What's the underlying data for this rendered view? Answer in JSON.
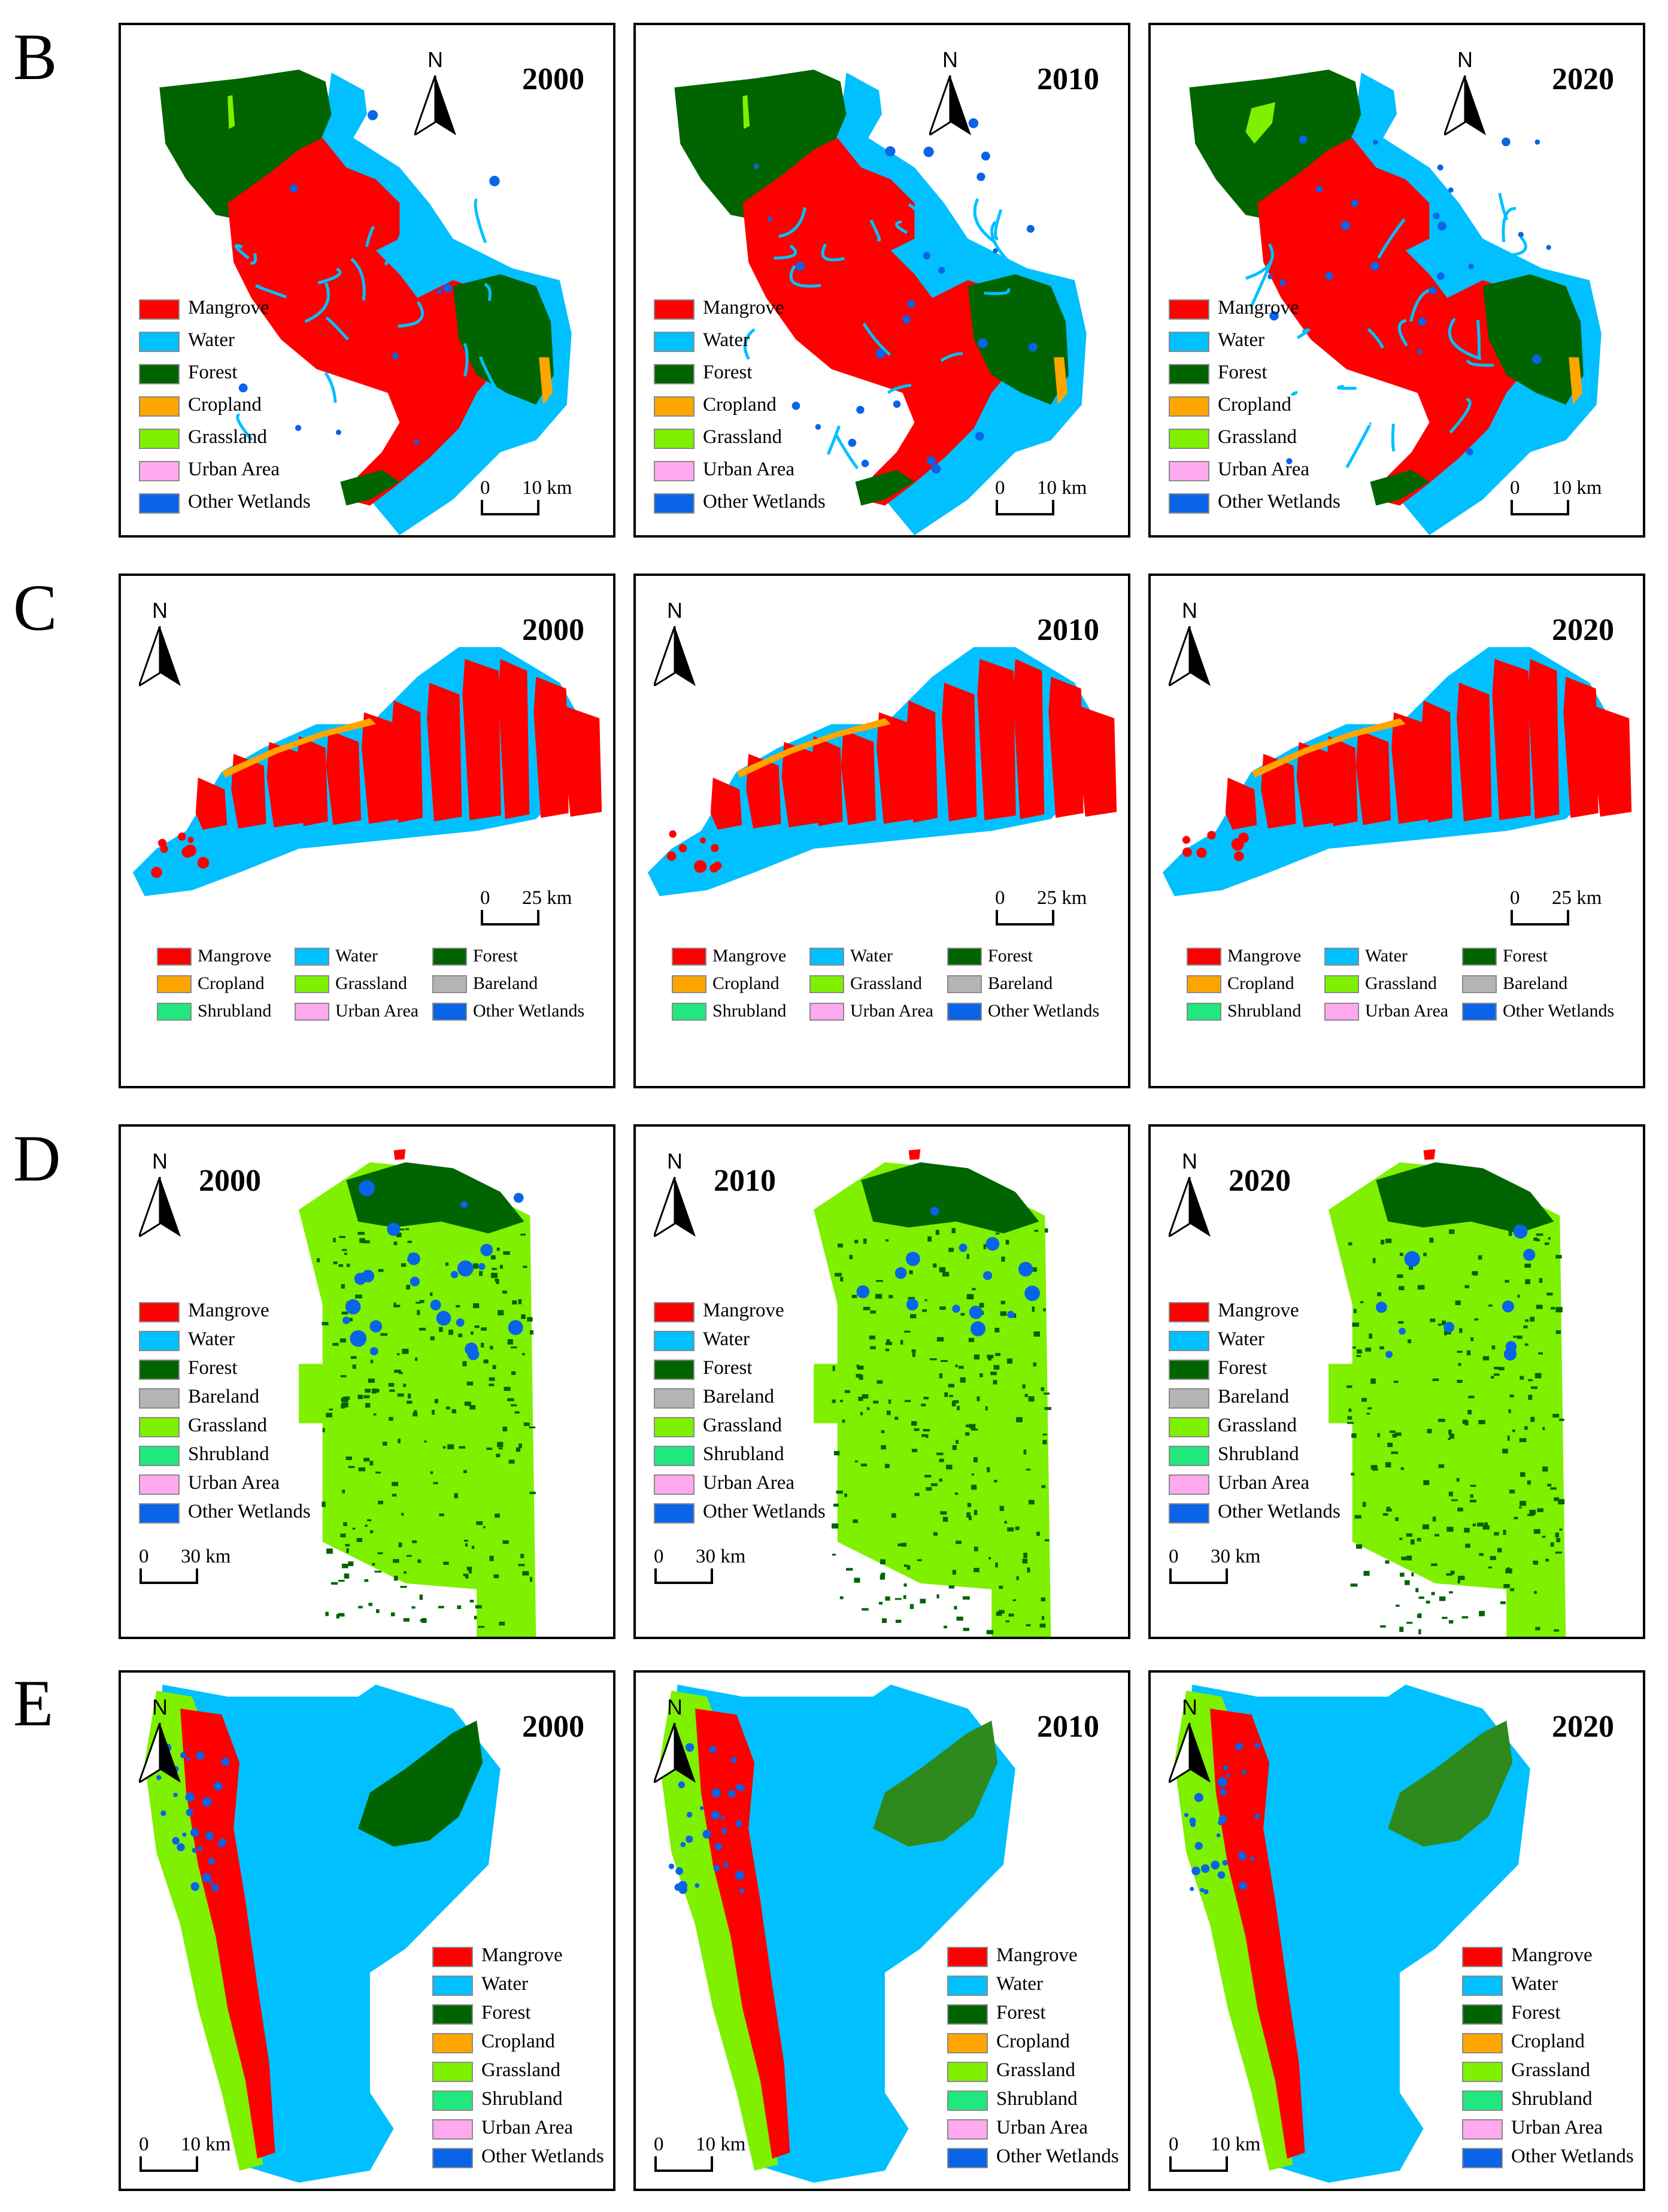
{
  "colors": {
    "mangrove": "#ff0000",
    "water": "#00c0ff",
    "forest": "#006400",
    "cropland": "#ffa500",
    "grassland": "#7ff000",
    "urban_area": "#ffaaee",
    "other_wetlands": "#0a64e8",
    "bareland": "#b4b4b4",
    "shrubland": "#20e87e"
  },
  "north_label": "N",
  "rows": [
    {
      "letter": "B",
      "years": [
        "2000",
        "2010",
        "2020"
      ],
      "scale": {
        "zero": "0",
        "end": "10 km"
      },
      "legend": [
        {
          "label": "Mangrove",
          "color": "#ff0000"
        },
        {
          "label": "Water",
          "color": "#00c0ff"
        },
        {
          "label": "Forest",
          "color": "#006400"
        },
        {
          "label": "Cropland",
          "color": "#ffa500"
        },
        {
          "label": "Grassland",
          "color": "#7ff000"
        },
        {
          "label": "Urban Area",
          "color": "#ffaaee"
        },
        {
          "label": "Other Wetlands",
          "color": "#0a64e8"
        }
      ]
    },
    {
      "letter": "C",
      "years": [
        "2000",
        "2010",
        "2020"
      ],
      "scale": {
        "zero": "0",
        "end": "25 km"
      },
      "legend": [
        {
          "label": "Mangrove",
          "color": "#ff0000"
        },
        {
          "label": "Water",
          "color": "#00c0ff"
        },
        {
          "label": "Forest",
          "color": "#006400"
        },
        {
          "label": "Cropland",
          "color": "#ffa500"
        },
        {
          "label": "Grassland",
          "color": "#7ff000"
        },
        {
          "label": "Bareland",
          "color": "#b4b4b4"
        },
        {
          "label": "Shrubland",
          "color": "#20e87e"
        },
        {
          "label": "Urban Area",
          "color": "#ffaaee"
        },
        {
          "label": "Other Wetlands",
          "color": "#0a64e8"
        }
      ]
    },
    {
      "letter": "D",
      "years": [
        "2000",
        "2010",
        "2020"
      ],
      "scale": {
        "zero": "0",
        "end": "30 km"
      },
      "legend": [
        {
          "label": "Mangrove",
          "color": "#ff0000"
        },
        {
          "label": "Water",
          "color": "#00c0ff"
        },
        {
          "label": "Forest",
          "color": "#006400"
        },
        {
          "label": "Bareland",
          "color": "#b4b4b4"
        },
        {
          "label": "Grassland",
          "color": "#7ff000"
        },
        {
          "label": "Shrubland",
          "color": "#20e87e"
        },
        {
          "label": "Urban Area",
          "color": "#ffaaee"
        },
        {
          "label": "Other Wetlands",
          "color": "#0a64e8"
        }
      ]
    },
    {
      "letter": "E",
      "years": [
        "2000",
        "2010",
        "2020"
      ],
      "scale": {
        "zero": "0",
        "end": "10 km"
      },
      "legend": [
        {
          "label": "Mangrove",
          "color": "#ff0000"
        },
        {
          "label": "Water",
          "color": "#00c0ff"
        },
        {
          "label": "Forest",
          "color": "#006400"
        },
        {
          "label": "Cropland",
          "color": "#ffa500"
        },
        {
          "label": "Grassland",
          "color": "#7ff000"
        },
        {
          "label": "Shrubland",
          "color": "#20e87e"
        },
        {
          "label": "Urban Area",
          "color": "#ffaaee"
        },
        {
          "label": "Other Wetlands",
          "color": "#0a64e8"
        }
      ]
    }
  ]
}
